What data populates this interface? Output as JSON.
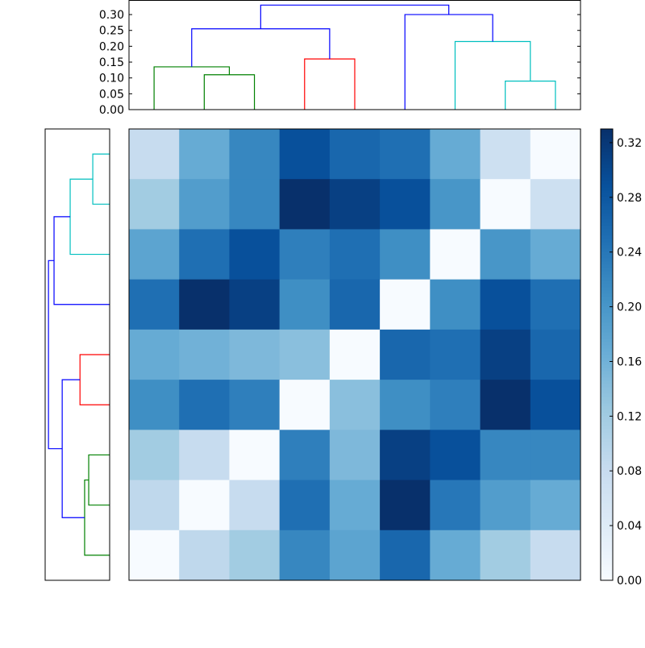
{
  "chart_data": {
    "type": "heatmap",
    "title": "",
    "colormap": "Blues",
    "colormap_stops": [
      "#f7fbff",
      "#deebf7",
      "#c6dbef",
      "#9ecae1",
      "#6baed6",
      "#4292c6",
      "#2171b5",
      "#08519c",
      "#08306b"
    ],
    "vmin": 0.0,
    "vmax": 0.33,
    "matrix": [
      [
        0.08,
        0.17,
        0.22,
        0.29,
        0.26,
        0.25,
        0.17,
        0.07,
        0.0
      ],
      [
        0.12,
        0.19,
        0.22,
        0.33,
        0.31,
        0.29,
        0.2,
        0.0,
        0.07
      ],
      [
        0.18,
        0.25,
        0.29,
        0.23,
        0.25,
        0.21,
        0.0,
        0.2,
        0.17
      ],
      [
        0.25,
        0.33,
        0.31,
        0.21,
        0.26,
        0.0,
        0.21,
        0.29,
        0.25
      ],
      [
        0.17,
        0.16,
        0.15,
        0.14,
        0.0,
        0.26,
        0.25,
        0.31,
        0.26
      ],
      [
        0.21,
        0.25,
        0.23,
        0.0,
        0.14,
        0.21,
        0.23,
        0.33,
        0.29
      ],
      [
        0.12,
        0.08,
        0.0,
        0.23,
        0.15,
        0.31,
        0.29,
        0.22,
        0.22
      ],
      [
        0.09,
        0.0,
        0.08,
        0.25,
        0.17,
        0.33,
        0.24,
        0.19,
        0.17
      ],
      [
        0.0,
        0.09,
        0.12,
        0.22,
        0.18,
        0.26,
        0.17,
        0.12,
        0.08
      ]
    ],
    "colorbar": {
      "ticks": [
        "0.00",
        "0.04",
        "0.08",
        "0.12",
        "0.16",
        "0.20",
        "0.24",
        "0.28",
        "0.32"
      ]
    },
    "top_dendrogram": {
      "ylim": [
        0,
        0.346
      ],
      "yticks": [
        "0.00",
        "0.05",
        "0.10",
        "0.15",
        "0.20",
        "0.25",
        "0.30"
      ],
      "links": [
        {
          "left": 1,
          "right": 2,
          "h_left": 0,
          "h_right": 0,
          "height": 0.11,
          "color": "#008000"
        },
        {
          "left": 0,
          "right": 1.5,
          "h_left": 0,
          "h_right": 0.11,
          "height": 0.135,
          "color": "#008000"
        },
        {
          "left": 3,
          "right": 4,
          "h_left": 0,
          "h_right": 0,
          "height": 0.16,
          "color": "#ff0000"
        },
        {
          "left": 0.75,
          "right": 3.5,
          "h_left": 0.135,
          "h_right": 0.16,
          "height": 0.255,
          "color": "#0000ff"
        },
        {
          "left": 7,
          "right": 8,
          "h_left": 0,
          "h_right": 0,
          "height": 0.09,
          "color": "#00bfbf"
        },
        {
          "left": 6,
          "right": 7.5,
          "h_left": 0,
          "h_right": 0.09,
          "height": 0.215,
          "color": "#00bfbf"
        },
        {
          "left": 5,
          "right": 6.75,
          "h_left": 0,
          "h_right": 0.215,
          "height": 0.3,
          "color": "#0000ff"
        },
        {
          "left": 2.125,
          "right": 5.875,
          "h_left": 0.255,
          "h_right": 0.3,
          "height": 0.33,
          "color": "#0000ff"
        }
      ]
    },
    "left_dendrogram": {
      "xlim": [
        0,
        0.348
      ],
      "links": [
        {
          "left": 0,
          "right": 1,
          "h_left": 0,
          "h_right": 0,
          "height": 0.091,
          "color": "#00bfbf"
        },
        {
          "left": 0.5,
          "right": 2,
          "h_left": 0.091,
          "h_right": 0,
          "height": 0.213,
          "color": "#00bfbf"
        },
        {
          "left": 1.25,
          "right": 3,
          "h_left": 0.213,
          "h_right": 0,
          "height": 0.3,
          "color": "#0000ff"
        },
        {
          "left": 4,
          "right": 5,
          "h_left": 0,
          "h_right": 0,
          "height": 0.16,
          "color": "#ff0000"
        },
        {
          "left": 6,
          "right": 7,
          "h_left": 0,
          "h_right": 0,
          "height": 0.113,
          "color": "#008000"
        },
        {
          "left": 6.5,
          "right": 8,
          "h_left": 0.113,
          "h_right": 0,
          "height": 0.135,
          "color": "#008000"
        },
        {
          "left": 4.5,
          "right": 7.25,
          "h_left": 0.16,
          "h_right": 0.135,
          "height": 0.256,
          "color": "#0000ff"
        },
        {
          "left": 2.125,
          "right": 5.875,
          "h_left": 0.3,
          "h_right": 0.256,
          "height": 0.33,
          "color": "#0000ff"
        }
      ]
    }
  }
}
